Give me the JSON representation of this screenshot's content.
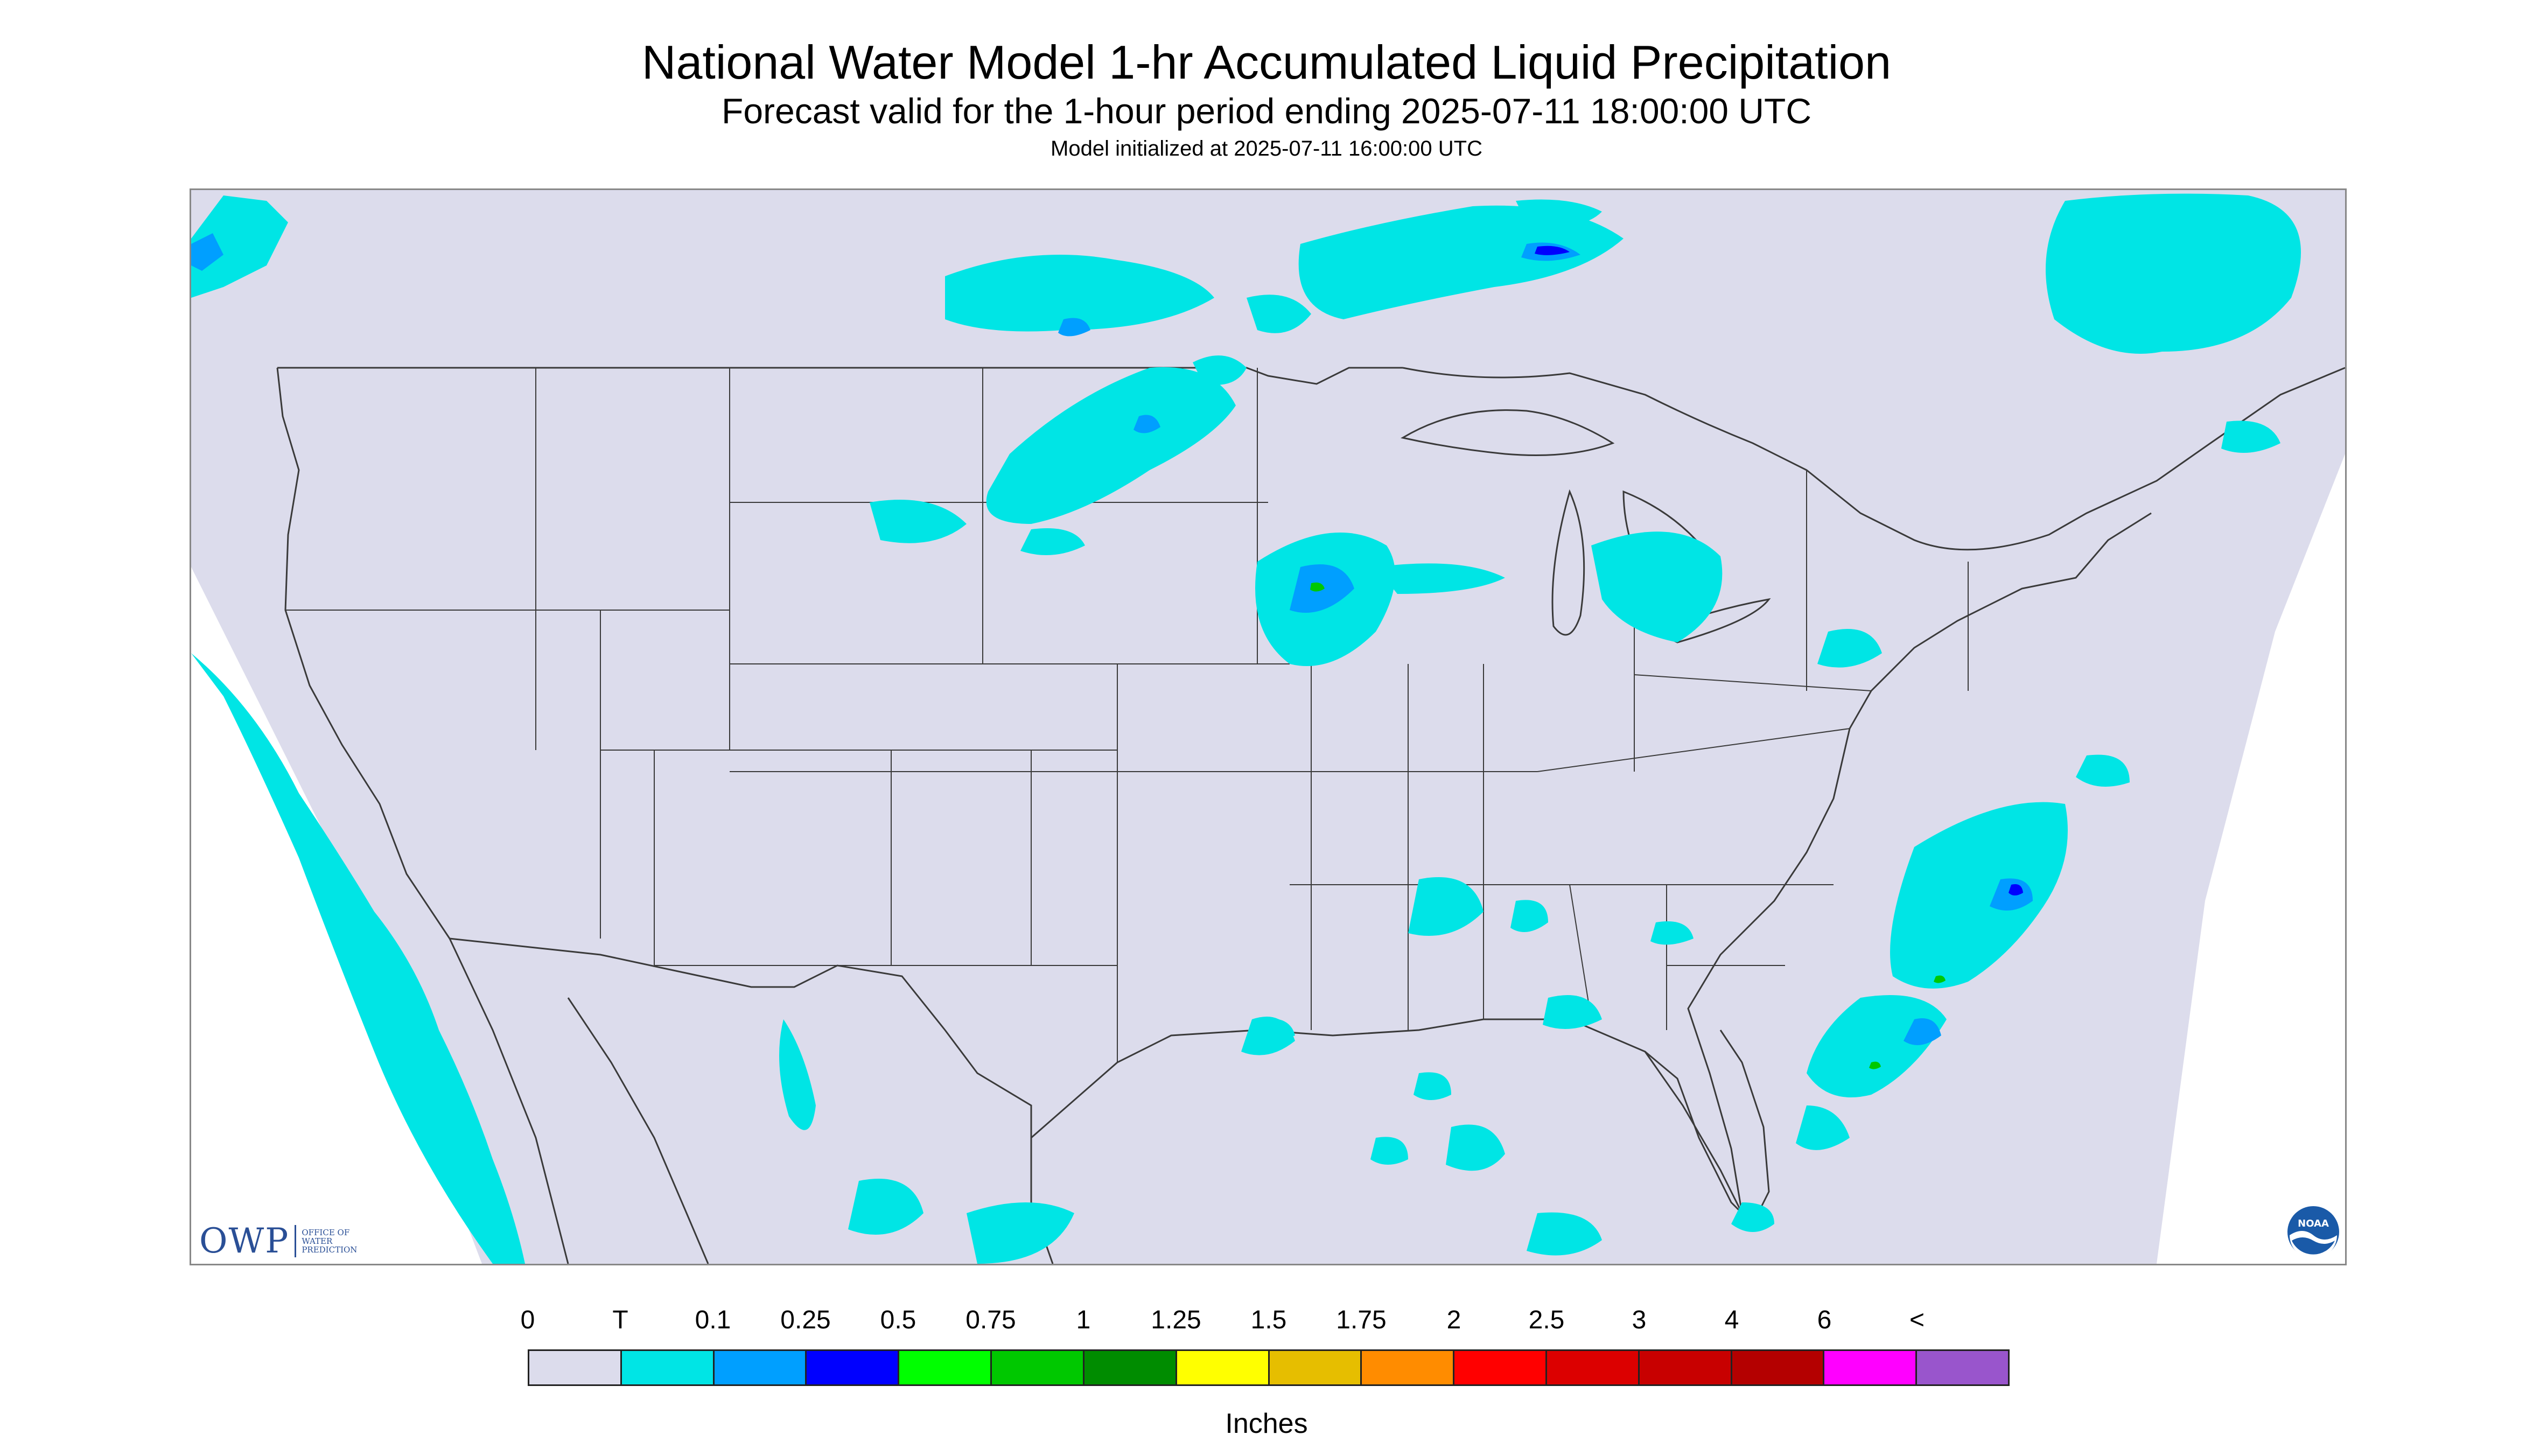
{
  "header": {
    "title": "National Water Model 1-hr Accumulated Liquid Precipitation",
    "subtitle": "Forecast valid for the 1-hour period ending 2025-07-11 18:00:00 UTC",
    "init": "Model initialized at 2025-07-11 16:00:00 UTC"
  },
  "map": {
    "background_color": "#dcdcec",
    "outside_color": "#ffffff",
    "boundary_color": "#3a3a3a",
    "light_precip_color": "#00e5e5",
    "moderate_precip_color": "#009fff",
    "heavy_precip_color": "#0000ff",
    "peak_precip_color": "#00c800"
  },
  "logos": {
    "owp_mark": "OWP",
    "owp_text": [
      "Office of",
      "Water",
      "Prediction"
    ],
    "noaa_text": "NOAA"
  },
  "legend": {
    "labels": [
      "0",
      "T",
      "0.1",
      "0.25",
      "0.5",
      "0.75",
      "1",
      "1.25",
      "1.5",
      "1.75",
      "2",
      "2.5",
      "3",
      "4",
      "6",
      "<"
    ],
    "colors": [
      "#dcdcec",
      "#00e5e5",
      "#009fff",
      "#0000ff",
      "#00ff00",
      "#00c800",
      "#008c00",
      "#ffff00",
      "#e6be00",
      "#ff8c00",
      "#ff0000",
      "#dc0000",
      "#c80000",
      "#b40000",
      "#ff00ff",
      "#9955cc"
    ],
    "units": "Inches"
  }
}
